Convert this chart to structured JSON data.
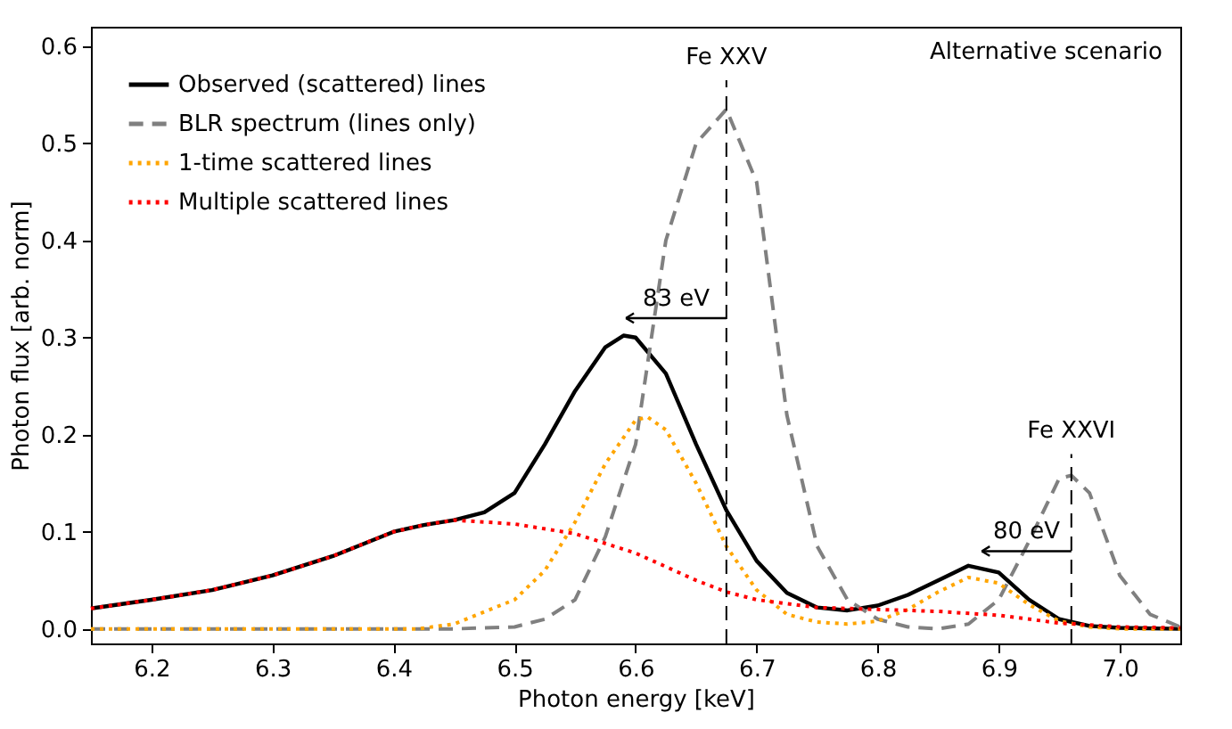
{
  "chart_data": {
    "type": "line",
    "xlabel": "Photon energy [keV]",
    "ylabel": "Photon flux [arb. norm]",
    "xlim": [
      6.15,
      7.05
    ],
    "xticks": [
      6.2,
      6.3,
      6.4,
      6.5,
      6.6,
      6.7,
      6.8,
      6.9,
      {
        "value": 7,
        "label": "7.0"
      }
    ],
    "ylim": [
      -0.015,
      0.62
    ],
    "yticks": [
      {
        "value": 0,
        "label": "0.0"
      },
      0.1,
      0.2,
      0.3,
      0.4,
      0.5,
      0.6
    ],
    "grid": false,
    "legend": "top left",
    "marker": "none",
    "series": [
      {
        "name": "Observed (scattered) lines",
        "color": "#000000",
        "line_style": "solid",
        "x": [
          6.15,
          6.2,
          6.25,
          6.3,
          6.35,
          6.4,
          6.425,
          6.45,
          6.475,
          6.5,
          6.525,
          6.55,
          6.575,
          6.59,
          6.6,
          6.625,
          6.65,
          6.675,
          6.7,
          6.725,
          6.75,
          6.775,
          6.8,
          6.825,
          6.85,
          6.875,
          6.9,
          6.925,
          6.95,
          6.975,
          7.0,
          7.05
        ],
        "values": [
          0.021,
          0.03,
          0.04,
          0.055,
          0.075,
          0.1,
          0.107,
          0.112,
          0.12,
          0.14,
          0.19,
          0.245,
          0.29,
          0.302,
          0.3,
          0.263,
          0.19,
          0.122,
          0.07,
          0.037,
          0.022,
          0.019,
          0.024,
          0.035,
          0.05,
          0.065,
          0.058,
          0.03,
          0.01,
          0.003,
          0.001,
          0.0
        ]
      },
      {
        "name": "BLR spectrum (lines only)",
        "color": "#808080",
        "line_style": "dashed",
        "x": [
          6.15,
          6.3,
          6.45,
          6.5,
          6.525,
          6.55,
          6.575,
          6.6,
          6.625,
          6.65,
          6.675,
          6.7,
          6.725,
          6.75,
          6.775,
          6.8,
          6.825,
          6.85,
          6.875,
          6.9,
          6.925,
          6.95,
          6.96,
          6.975,
          7.0,
          7.025,
          7.05
        ],
        "values": [
          0.0,
          0.0,
          0.0,
          0.002,
          0.01,
          0.03,
          0.095,
          0.19,
          0.4,
          0.5,
          0.535,
          0.46,
          0.22,
          0.085,
          0.03,
          0.01,
          0.002,
          0.0,
          0.005,
          0.03,
          0.09,
          0.155,
          0.158,
          0.14,
          0.055,
          0.015,
          0.002
        ]
      },
      {
        "name": "1-time scattered lines",
        "color": "#ffa500",
        "line_style": "dotted",
        "x": [
          6.15,
          6.3,
          6.42,
          6.45,
          6.5,
          6.525,
          6.55,
          6.575,
          6.6,
          6.61,
          6.625,
          6.65,
          6.675,
          6.7,
          6.725,
          6.75,
          6.775,
          6.8,
          6.825,
          6.85,
          6.875,
          6.9,
          6.925,
          6.95,
          6.975,
          7.0,
          7.05
        ],
        "values": [
          0.0,
          0.0,
          0.0,
          0.005,
          0.03,
          0.06,
          0.11,
          0.17,
          0.215,
          0.218,
          0.205,
          0.15,
          0.085,
          0.04,
          0.015,
          0.007,
          0.005,
          0.008,
          0.02,
          0.038,
          0.053,
          0.047,
          0.025,
          0.008,
          0.002,
          0.0,
          0.0
        ]
      },
      {
        "name": "Multiple scattered lines",
        "color": "#ff0000",
        "line_style": "dotted",
        "x": [
          6.15,
          6.2,
          6.25,
          6.3,
          6.35,
          6.4,
          6.425,
          6.45,
          6.5,
          6.55,
          6.6,
          6.65,
          6.675,
          6.7,
          6.75,
          6.8,
          6.85,
          6.9,
          6.95,
          7.0,
          7.05
        ],
        "values": [
          0.021,
          0.03,
          0.04,
          0.055,
          0.075,
          0.1,
          0.107,
          0.112,
          0.108,
          0.098,
          0.078,
          0.05,
          0.038,
          0.03,
          0.022,
          0.02,
          0.018,
          0.014,
          0.006,
          0.002,
          0.001
        ]
      }
    ],
    "ref_lines": [
      {
        "axis": "x",
        "value": 6.675,
        "color": "#000000",
        "line_style": "dashed"
      },
      {
        "axis": "x",
        "value": 6.96,
        "color": "#000000",
        "line_style": "dashed"
      }
    ],
    "annotations": [
      {
        "text": "Fe XXV",
        "x": 6.675,
        "y": 0.565
      },
      {
        "text": "Fe XXVI",
        "x": 6.96,
        "y": 0.18
      },
      {
        "text": "83 eV",
        "x": 6.592,
        "y": 0.32
      },
      {
        "text": "80 eV",
        "x": 6.886,
        "y": 0.08
      },
      "Alternative scenario"
    ]
  }
}
